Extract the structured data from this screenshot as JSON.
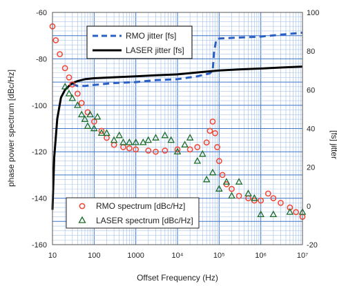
{
  "chart_data": {
    "type": "line",
    "xlabel": "Offset Frequency (Hz)",
    "ylabel": "phase power spectrum [dBc/Hz]",
    "y2label": "[fs] jitter",
    "x_scale": "log",
    "xlim": [
      10,
      10000000
    ],
    "ylim": [
      -160,
      -60
    ],
    "y2lim": [
      -20,
      100
    ],
    "grid": true,
    "x_ticks": [
      {
        "value": 10,
        "label": "10"
      },
      {
        "value": 100,
        "label": "100"
      },
      {
        "value": 1000,
        "label": "1000"
      },
      {
        "value": 10000,
        "label": "10⁴"
      },
      {
        "value": 100000,
        "label": "10⁵"
      },
      {
        "value": 1000000,
        "label": "10⁶"
      },
      {
        "value": 10000000,
        "label": "10⁷"
      }
    ],
    "y_ticks": [
      "-60",
      "-80",
      "-100",
      "-120",
      "-140",
      "-160"
    ],
    "y2_ticks": [
      "100",
      "80",
      "60",
      "40",
      "20",
      "0",
      "-20"
    ],
    "legend_top": {
      "placement": "top-center",
      "entries": [
        "RMO jitter [fs]",
        "LASER jitter [fs]"
      ]
    },
    "legend_bottom": {
      "placement": "bottom-left",
      "entries": [
        "RMO spectrum [dBc/Hz]",
        "LASER spectrum [dBc/Hz]"
      ]
    },
    "series": [
      {
        "name": "RMO jitter [fs]",
        "axis": "right",
        "style": "dashed-line",
        "color": "#2a5fc4",
        "x": [
          30,
          40,
          60,
          100,
          300,
          1000,
          3000,
          10000,
          30000,
          60000,
          70000,
          75000,
          85000,
          100000,
          300000,
          1000000,
          3000000,
          10000000
        ],
        "y": [
          63,
          62,
          62,
          62.5,
          63.5,
          64,
          65,
          65.5,
          67,
          68.5,
          70,
          79,
          86,
          86.5,
          87,
          87.5,
          88.5,
          89.5
        ]
      },
      {
        "name": "LASER jitter [fs]",
        "axis": "right",
        "style": "line",
        "color": "#000000",
        "x": [
          10,
          11,
          13,
          16,
          20,
          25,
          30,
          40,
          60,
          100,
          300,
          1000,
          3000,
          10000,
          30000,
          100000,
          300000,
          1000000,
          3000000,
          10000000
        ],
        "y": [
          -2,
          25,
          45,
          56,
          60,
          62,
          63.5,
          64.5,
          65.5,
          66,
          66.5,
          67,
          67.5,
          68,
          69,
          70,
          70.5,
          71,
          71.5,
          72
        ]
      },
      {
        "name": "RMO spectrum [dBc/Hz]",
        "axis": "left",
        "style": "circle-markers",
        "color": "#f04a3a",
        "x": [
          10,
          12,
          15,
          20,
          25,
          30,
          40,
          50,
          70,
          100,
          150,
          200,
          300,
          500,
          700,
          1000,
          2000,
          3000,
          5000,
          10000,
          20000,
          30000,
          50000,
          60000,
          70000,
          80000,
          90000,
          100000,
          120000,
          150000,
          200000,
          300000,
          500000,
          700000,
          1000000,
          1500000,
          2000000,
          3000000,
          5000000,
          7000000,
          10000000
        ],
        "y": [
          -66,
          -72,
          -78,
          -84,
          -88,
          -91,
          -95,
          -99,
          -103,
          -107,
          -111,
          -114,
          -117,
          -118,
          -118.5,
          -119,
          -119.5,
          -120,
          -119.5,
          -119,
          -119,
          -118,
          -116,
          -111,
          -107,
          -112,
          -118,
          -124,
          -130,
          -134,
          -136,
          -139,
          -140,
          -141,
          -141,
          -138,
          -140,
          -142,
          -144,
          -146,
          -148
        ]
      },
      {
        "name": "LASER spectrum [dBc/Hz]",
        "axis": "left",
        "style": "triangle-markers",
        "color": "#1a6b2a",
        "x": [
          20,
          25,
          30,
          40,
          50,
          60,
          70,
          80,
          100,
          120,
          150,
          200,
          300,
          400,
          500,
          700,
          1000,
          1500,
          2000,
          3000,
          5000,
          7000,
          10000,
          15000,
          20000,
          30000,
          40000,
          50000,
          70000,
          100000,
          150000,
          200000,
          300000,
          500000,
          700000,
          1000000,
          2000000,
          5000000,
          10000000
        ],
        "y": [
          -92,
          -95,
          -97,
          -100,
          -104,
          -106,
          -109,
          -104,
          -110,
          -105,
          -112,
          -112,
          -115,
          -113,
          -116,
          -116,
          -116,
          -116,
          -115,
          -114,
          -113,
          -115,
          -120,
          -117,
          -114,
          -124,
          -121,
          -132,
          -129,
          -136,
          -133,
          -139,
          -133,
          -138,
          -140,
          -147,
          -147,
          -146,
          -146
        ]
      }
    ]
  }
}
